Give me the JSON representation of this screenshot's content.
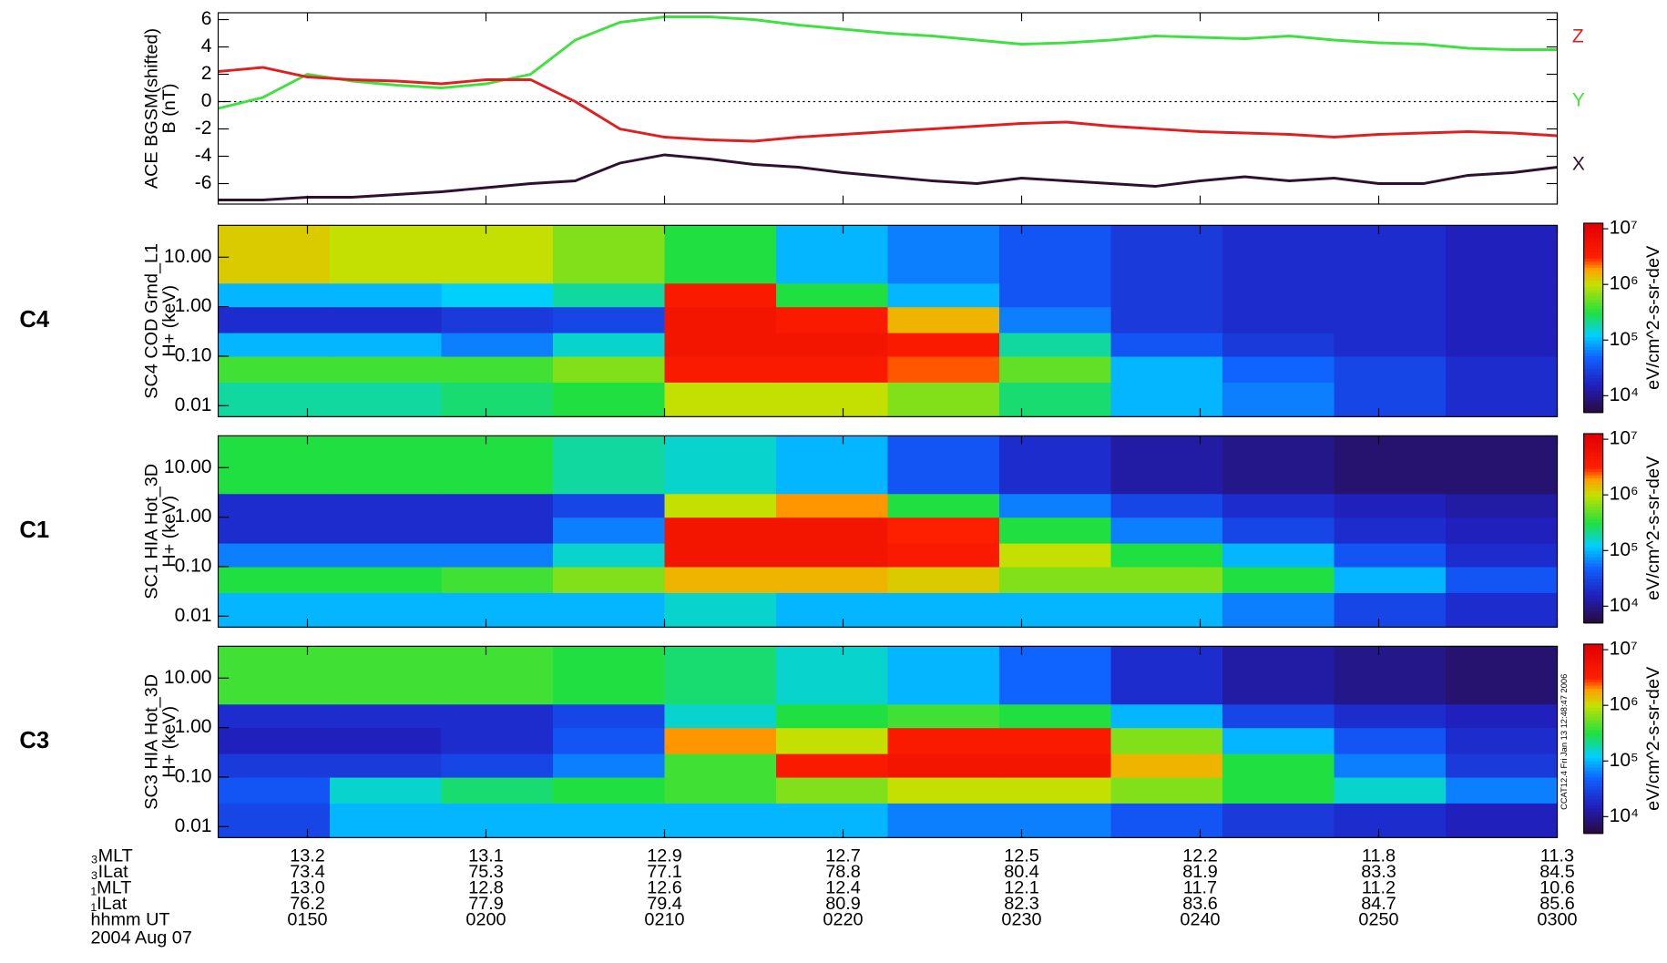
{
  "chart_data": [
    {
      "type": "line",
      "ylabel": [
        "ACE BGSM(shifted)",
        "B (nT)"
      ],
      "x": [
        45,
        47.5,
        50,
        52.5,
        55,
        57.5,
        60,
        62.5,
        65,
        67.5,
        70,
        72.5,
        75,
        77.5,
        80,
        82.5,
        85,
        87.5,
        90,
        92.5,
        95,
        97.5,
        100,
        102.5,
        105,
        107.5,
        110,
        112.5,
        115,
        117.5,
        120
      ],
      "series": [
        {
          "name": "X",
          "color": "#301030",
          "values": [
            -7.2,
            -7.2,
            -7.0,
            -7.0,
            -6.8,
            -6.6,
            -6.3,
            -6.0,
            -5.8,
            -4.5,
            -3.9,
            -4.2,
            -4.6,
            -4.8,
            -5.2,
            -5.5,
            -5.8,
            -6.0,
            -5.6,
            -5.8,
            -6.0,
            -6.2,
            -5.8,
            -5.5,
            -5.8,
            -5.6,
            -6.0,
            -6.0,
            -5.4,
            -5.2,
            -4.8
          ]
        },
        {
          "name": "Y",
          "color": "#40e040",
          "values": [
            -0.5,
            0.3,
            2.0,
            1.5,
            1.2,
            1.0,
            1.3,
            2.0,
            4.5,
            5.8,
            6.2,
            6.2,
            6.0,
            5.6,
            5.3,
            5.0,
            4.8,
            4.5,
            4.2,
            4.3,
            4.5,
            4.8,
            4.7,
            4.6,
            4.8,
            4.5,
            4.3,
            4.2,
            3.9,
            3.8,
            3.8
          ]
        },
        {
          "name": "Z",
          "color": "#e02020",
          "values": [
            2.2,
            2.5,
            1.8,
            1.6,
            1.5,
            1.3,
            1.6,
            1.6,
            0.0,
            -2.0,
            -2.6,
            -2.8,
            -2.9,
            -2.6,
            -2.4,
            -2.2,
            -2.0,
            -1.8,
            -1.6,
            -1.5,
            -1.8,
            -2.0,
            -2.2,
            -2.3,
            -2.4,
            -2.6,
            -2.4,
            -2.3,
            -2.2,
            -2.3,
            -2.5
          ]
        }
      ],
      "xlim": [
        45,
        120
      ],
      "ylim": [
        -7.5,
        6.5
      ],
      "yticks": [
        -6,
        -4,
        -2,
        0,
        2,
        4,
        6
      ],
      "hline": 0
    },
    {
      "type": "heatmap",
      "panel_label": "C4",
      "ylabel": [
        "SC4 COD Grnd_L1",
        "H+ (keV)"
      ],
      "x_bins": [
        45,
        51.25,
        57.5,
        63.75,
        70,
        76.25,
        82.5,
        88.75,
        95,
        101.25,
        107.5,
        113.75,
        120
      ],
      "energy_bins": [
        0.006,
        0.03,
        0.1,
        0.3,
        1,
        3,
        44
      ],
      "z": [
        [
          5.3,
          5.3,
          5.4,
          5.5,
          6.0,
          6.0,
          5.8,
          5.4,
          5.0,
          4.8,
          4.5,
          4.3
        ],
        [
          5.6,
          5.6,
          5.6,
          5.8,
          6.6,
          6.6,
          6.4,
          5.7,
          5.0,
          4.7,
          4.5,
          4.3
        ],
        [
          5.0,
          5.0,
          4.8,
          5.2,
          6.7,
          6.7,
          6.6,
          5.3,
          4.6,
          4.4,
          4.3,
          4.2
        ],
        [
          4.3,
          4.3,
          4.4,
          4.5,
          6.7,
          6.6,
          6.2,
          4.8,
          4.4,
          4.3,
          4.3,
          4.2
        ],
        [
          5.0,
          5.0,
          5.1,
          5.3,
          6.6,
          5.5,
          5.0,
          4.6,
          4.4,
          4.3,
          4.3,
          4.2
        ],
        [
          6.1,
          6.0,
          6.0,
          5.8,
          5.5,
          5.0,
          4.8,
          4.6,
          4.4,
          4.3,
          4.3,
          4.2
        ]
      ],
      "xlim": [
        45,
        120
      ],
      "ylim": [
        0.006,
        44
      ],
      "log_y": true,
      "yticks": [
        0.01,
        {
          "value": 0.1,
          "label": "0.10"
        },
        {
          "value": 1,
          "label": "1.00"
        },
        {
          "value": 10,
          "label": "10.00"
        }
      ],
      "clim": [
        3.7,
        7.1
      ],
      "cticks": [
        {
          "value": 4,
          "label": "10⁴"
        },
        {
          "value": 5,
          "label": "10⁵"
        },
        {
          "value": 6,
          "label": "10⁶"
        },
        {
          "value": 7,
          "label": "10⁷"
        }
      ],
      "clabel": "eV/cm^2-s-sr-deV"
    },
    {
      "type": "heatmap",
      "panel_label": "C1",
      "ylabel": [
        "SC1 HIA Hot_3D",
        "H+ (keV)"
      ],
      "x_bins": [
        45,
        51.25,
        57.5,
        63.75,
        70,
        76.25,
        82.5,
        88.75,
        95,
        101.25,
        107.5,
        113.75,
        120
      ],
      "energy_bins": [
        0.006,
        0.03,
        0.1,
        0.3,
        1,
        3,
        44
      ],
      "z": [
        [
          5.0,
          5.0,
          5.0,
          5.0,
          5.2,
          5.0,
          5.0,
          5.0,
          5.0,
          4.8,
          4.5,
          4.3
        ],
        [
          5.5,
          5.5,
          5.6,
          5.8,
          6.2,
          6.2,
          6.1,
          5.8,
          5.8,
          5.5,
          5.0,
          4.6
        ],
        [
          4.8,
          4.8,
          4.8,
          5.2,
          6.7,
          6.7,
          6.6,
          6.0,
          5.5,
          5.0,
          4.6,
          4.3
        ],
        [
          4.3,
          4.3,
          4.3,
          4.8,
          6.7,
          6.7,
          6.5,
          5.5,
          4.8,
          4.5,
          4.3,
          4.2
        ],
        [
          4.3,
          4.3,
          4.3,
          4.5,
          6.0,
          6.3,
          5.5,
          4.8,
          4.5,
          4.3,
          4.2,
          4.1
        ],
        [
          5.5,
          5.5,
          5.5,
          5.3,
          5.2,
          5.0,
          4.6,
          4.3,
          4.1,
          4.0,
          3.9,
          3.9
        ]
      ],
      "xlim": [
        45,
        120
      ],
      "ylim": [
        0.006,
        44
      ],
      "log_y": true,
      "yticks": [
        0.01,
        {
          "value": 0.1,
          "label": "0.10"
        },
        {
          "value": 1,
          "label": "1.00"
        },
        {
          "value": 10,
          "label": "10.00"
        }
      ],
      "clim": [
        3.7,
        7.1
      ],
      "cticks": [
        {
          "value": 4,
          "label": "10⁴"
        },
        {
          "value": 5,
          "label": "10⁵"
        },
        {
          "value": 6,
          "label": "10⁶"
        },
        {
          "value": 7,
          "label": "10⁷"
        }
      ],
      "clabel": "eV/cm^2-s-sr-deV"
    },
    {
      "type": "heatmap",
      "panel_label": "C3",
      "ylabel": [
        "SC3 HIA Hot_3D",
        "H+ (keV)"
      ],
      "x_bins": [
        45,
        51.25,
        57.5,
        63.75,
        70,
        76.25,
        82.5,
        88.75,
        95,
        101.25,
        107.5,
        113.75,
        120
      ],
      "energy_bins": [
        0.006,
        0.03,
        0.1,
        0.3,
        1,
        3,
        44
      ],
      "z": [
        [
          4.5,
          5.0,
          5.0,
          5.0,
          5.0,
          5.0,
          4.8,
          4.8,
          4.6,
          4.4,
          4.3,
          4.2
        ],
        [
          4.6,
          5.2,
          5.4,
          5.5,
          5.6,
          5.8,
          6.0,
          6.0,
          5.8,
          5.5,
          5.2,
          4.8
        ],
        [
          4.4,
          4.4,
          4.5,
          4.8,
          5.6,
          6.6,
          6.7,
          6.7,
          6.2,
          5.5,
          4.8,
          4.4
        ],
        [
          4.2,
          4.2,
          4.3,
          4.6,
          6.3,
          6.0,
          6.6,
          6.6,
          5.8,
          5.0,
          4.6,
          4.3
        ],
        [
          4.3,
          4.3,
          4.3,
          4.5,
          5.2,
          5.5,
          5.6,
          5.5,
          5.0,
          4.5,
          4.3,
          4.2
        ],
        [
          5.6,
          5.6,
          5.6,
          5.5,
          5.4,
          5.2,
          5.0,
          4.7,
          4.3,
          4.1,
          4.0,
          3.9
        ]
      ],
      "xlim": [
        45,
        120
      ],
      "ylim": [
        0.006,
        44
      ],
      "log_y": true,
      "yticks": [
        0.01,
        {
          "value": 0.1,
          "label": "0.10"
        },
        {
          "value": 1,
          "label": "1.00"
        },
        {
          "value": 10,
          "label": "10.00"
        }
      ],
      "clim": [
        3.7,
        7.1
      ],
      "cticks": [
        {
          "value": 4,
          "label": "10⁴"
        },
        {
          "value": 5,
          "label": "10⁵"
        },
        {
          "value": 6,
          "label": "10⁶"
        },
        {
          "value": 7,
          "label": "10⁷"
        }
      ],
      "clabel": "eV/cm^2-s-sr-deV",
      "xticks": [
        {
          "value": 50,
          "label": "0150"
        },
        {
          "value": 60,
          "label": "0200"
        },
        {
          "value": 70,
          "label": "0210"
        },
        {
          "value": 80,
          "label": "0220"
        },
        {
          "value": 90,
          "label": "0230"
        },
        {
          "value": 100,
          "label": "0240"
        },
        {
          "value": 110,
          "label": "0250"
        },
        {
          "value": 120,
          "label": "0300"
        }
      ],
      "xlabel": "hhmm UT",
      "footnote": "CCAT12.4 Fri Jan 13 12:48:47 2006"
    }
  ],
  "ephemeris": {
    "rows": [
      {
        "label": "₃MLT",
        "values": [
          "13.2",
          "13.1",
          "12.9",
          "12.7",
          "12.5",
          "12.2",
          "11.8",
          "11.3"
        ]
      },
      {
        "label": "₃ILat",
        "values": [
          "73.4",
          "75.3",
          "77.1",
          "78.8",
          "80.4",
          "81.9",
          "83.3",
          "84.5"
        ]
      },
      {
        "label": "₁MLT",
        "values": [
          "13.0",
          "12.8",
          "12.6",
          "12.4",
          "12.1",
          "11.7",
          "11.2",
          "10.6"
        ]
      },
      {
        "label": "₁ILat",
        "values": [
          "76.2",
          "77.9",
          "79.4",
          "80.9",
          "82.3",
          "83.6",
          "84.7",
          "85.6"
        ]
      }
    ],
    "date": "2004 Aug 07"
  }
}
